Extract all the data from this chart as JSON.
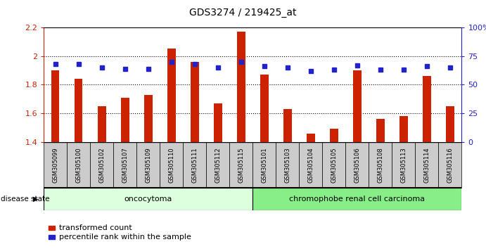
{
  "title": "GDS3274 / 219425_at",
  "samples": [
    "GSM305099",
    "GSM305100",
    "GSM305102",
    "GSM305107",
    "GSM305109",
    "GSM305110",
    "GSM305111",
    "GSM305112",
    "GSM305115",
    "GSM305101",
    "GSM305103",
    "GSM305104",
    "GSM305105",
    "GSM305106",
    "GSM305108",
    "GSM305113",
    "GSM305114",
    "GSM305116"
  ],
  "bar_values": [
    1.9,
    1.84,
    1.65,
    1.71,
    1.73,
    2.05,
    1.96,
    1.67,
    2.17,
    1.87,
    1.63,
    1.46,
    1.49,
    1.9,
    1.56,
    1.58,
    1.86,
    1.65
  ],
  "percentile_values": [
    68,
    68,
    65,
    64,
    64,
    70,
    68,
    65,
    70,
    66,
    65,
    62,
    63,
    67,
    63,
    63,
    66,
    65
  ],
  "ylim_left": [
    1.4,
    2.2
  ],
  "ylim_right": [
    0,
    100
  ],
  "right_ticks": [
    0,
    25,
    50,
    75,
    100
  ],
  "right_tick_labels": [
    "0",
    "25",
    "50",
    "75",
    "100%"
  ],
  "left_ticks": [
    1.4,
    1.6,
    1.8,
    2.0,
    2.2
  ],
  "left_tick_labels": [
    "1.4",
    "1.6",
    "1.8",
    "2",
    "2.2"
  ],
  "bar_color": "#cc2200",
  "dot_color": "#2222cc",
  "group1_label": "oncocytoma",
  "group2_label": "chromophobe renal cell carcinoma",
  "group1_count": 9,
  "group2_count": 9,
  "group1_bg": "#ddffdd",
  "group2_bg": "#88ee88",
  "disease_state_label": "disease state",
  "legend_bar_label": "transformed count",
  "legend_dot_label": "percentile rank within the sample",
  "title_fontsize": 10,
  "axis_color_left": "#cc2200",
  "axis_color_right": "#2222cc",
  "tick_bg_color": "#cccccc",
  "dotted_gridlines": [
    1.6,
    1.8,
    2.0
  ]
}
